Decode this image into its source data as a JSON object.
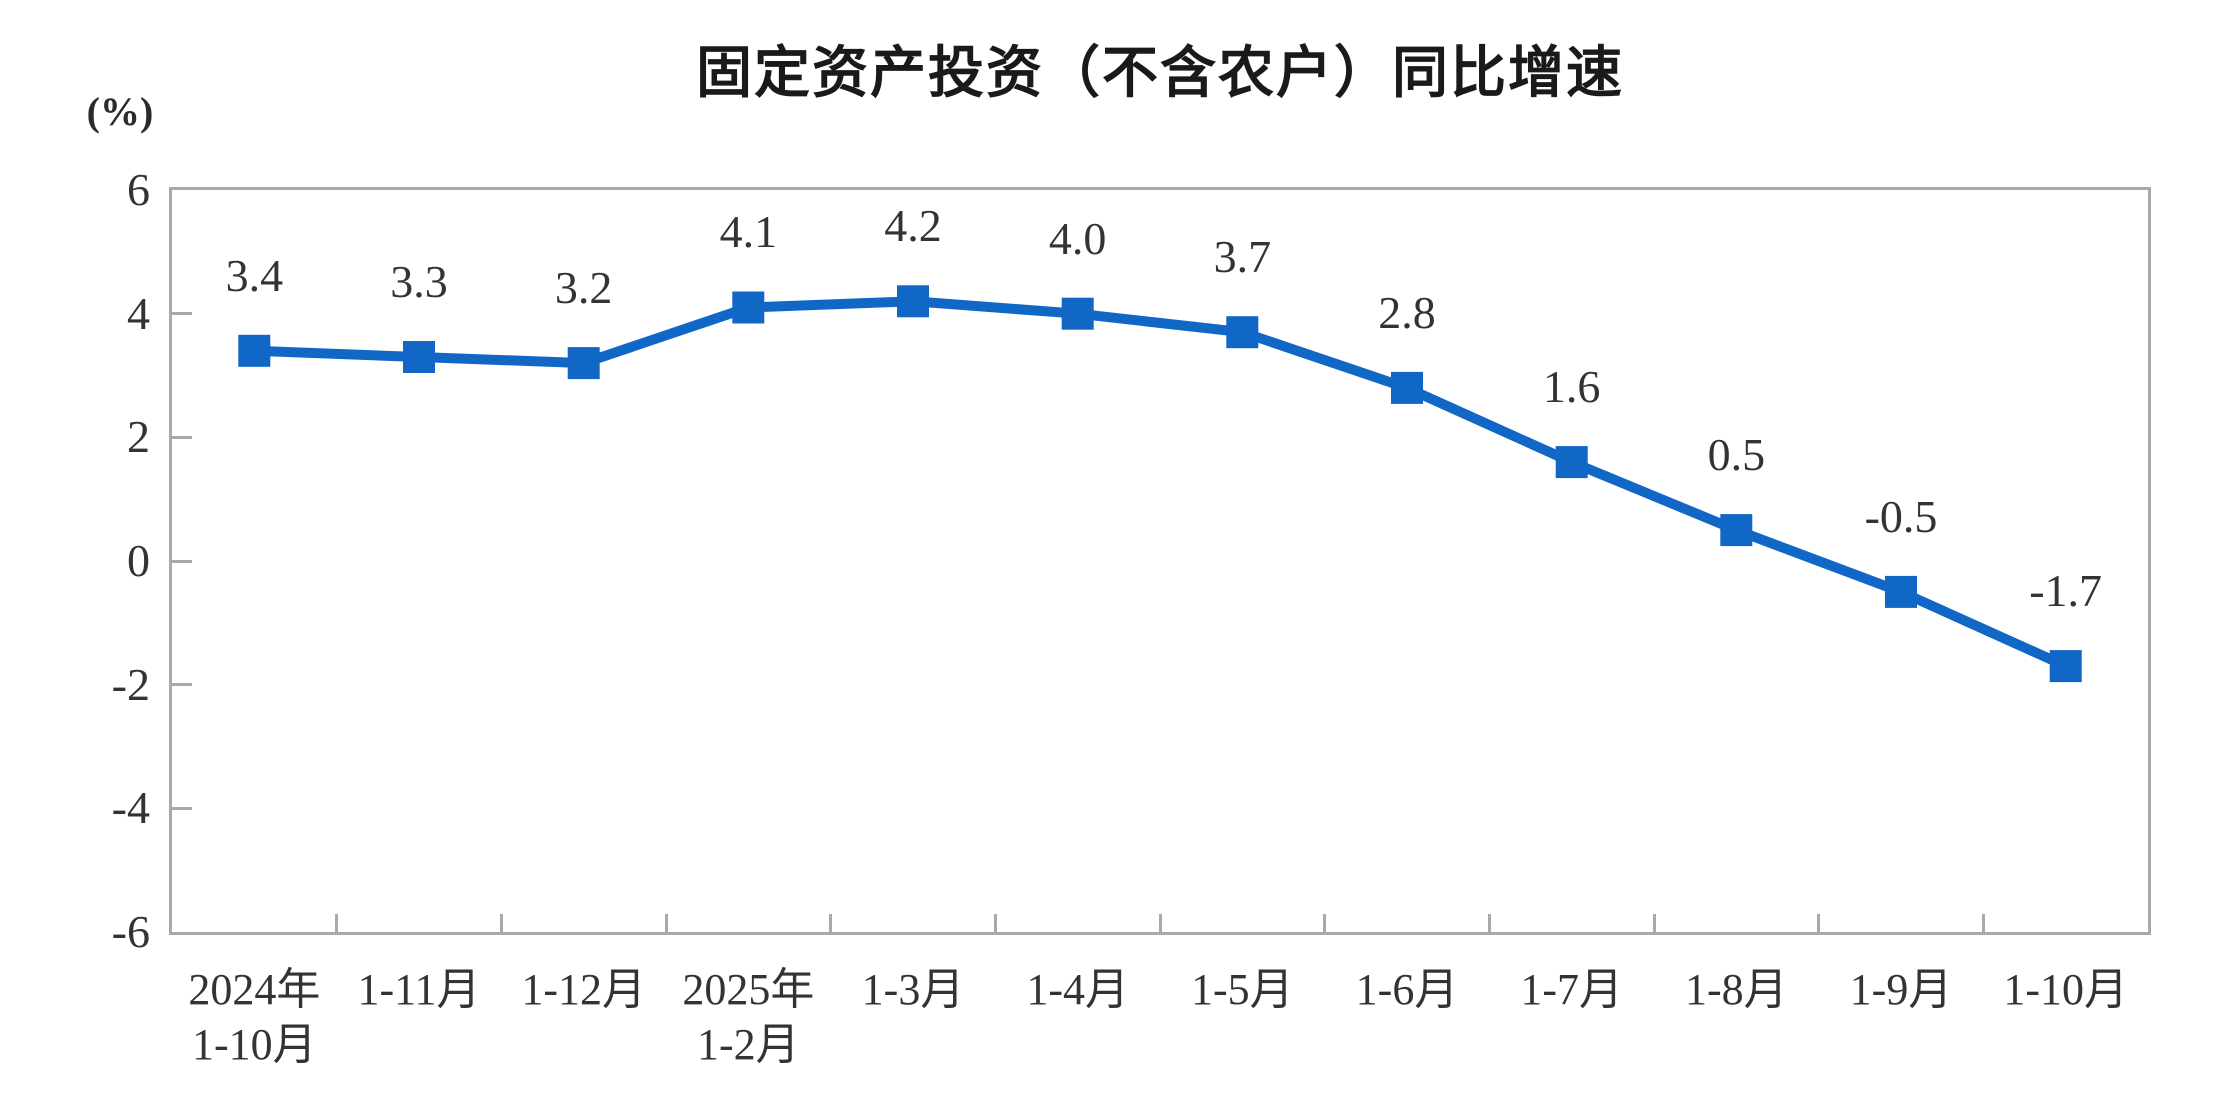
{
  "chart_data": {
    "type": "line",
    "title": "固定资产投资（不含农户）同比增速",
    "ylabel": "(%)",
    "xlabel": "",
    "ylim": [
      -6,
      6
    ],
    "y_ticks": [
      6,
      4,
      2,
      0,
      -2,
      -4,
      -6
    ],
    "grid": false,
    "legend": null,
    "categories": [
      [
        "2024年",
        "1-10月"
      ],
      [
        "1-11月"
      ],
      [
        "1-12月"
      ],
      [
        "2025年",
        "1-2月"
      ],
      [
        "1-3月"
      ],
      [
        "1-4月"
      ],
      [
        "1-5月"
      ],
      [
        "1-6月"
      ],
      [
        "1-7月"
      ],
      [
        "1-8月"
      ],
      [
        "1-9月"
      ],
      [
        "1-10月"
      ]
    ],
    "values": [
      3.4,
      3.3,
      3.2,
      4.1,
      4.2,
      4.0,
      3.7,
      2.8,
      1.6,
      0.5,
      -0.5,
      -1.7
    ],
    "point_labels": [
      "3.4",
      "3.3",
      "3.2",
      "4.1",
      "4.2",
      "4.0",
      "3.7",
      "2.8",
      "1.6",
      "0.5",
      "-0.5",
      "-1.7"
    ],
    "colors": {
      "line": "#1167C6",
      "marker": "#1167C6",
      "axis": "#A9A9A9",
      "tick": "#A9A9A9",
      "label_text": "#333333",
      "title_text": "#1A1A1A"
    },
    "marker_shape": "square"
  }
}
